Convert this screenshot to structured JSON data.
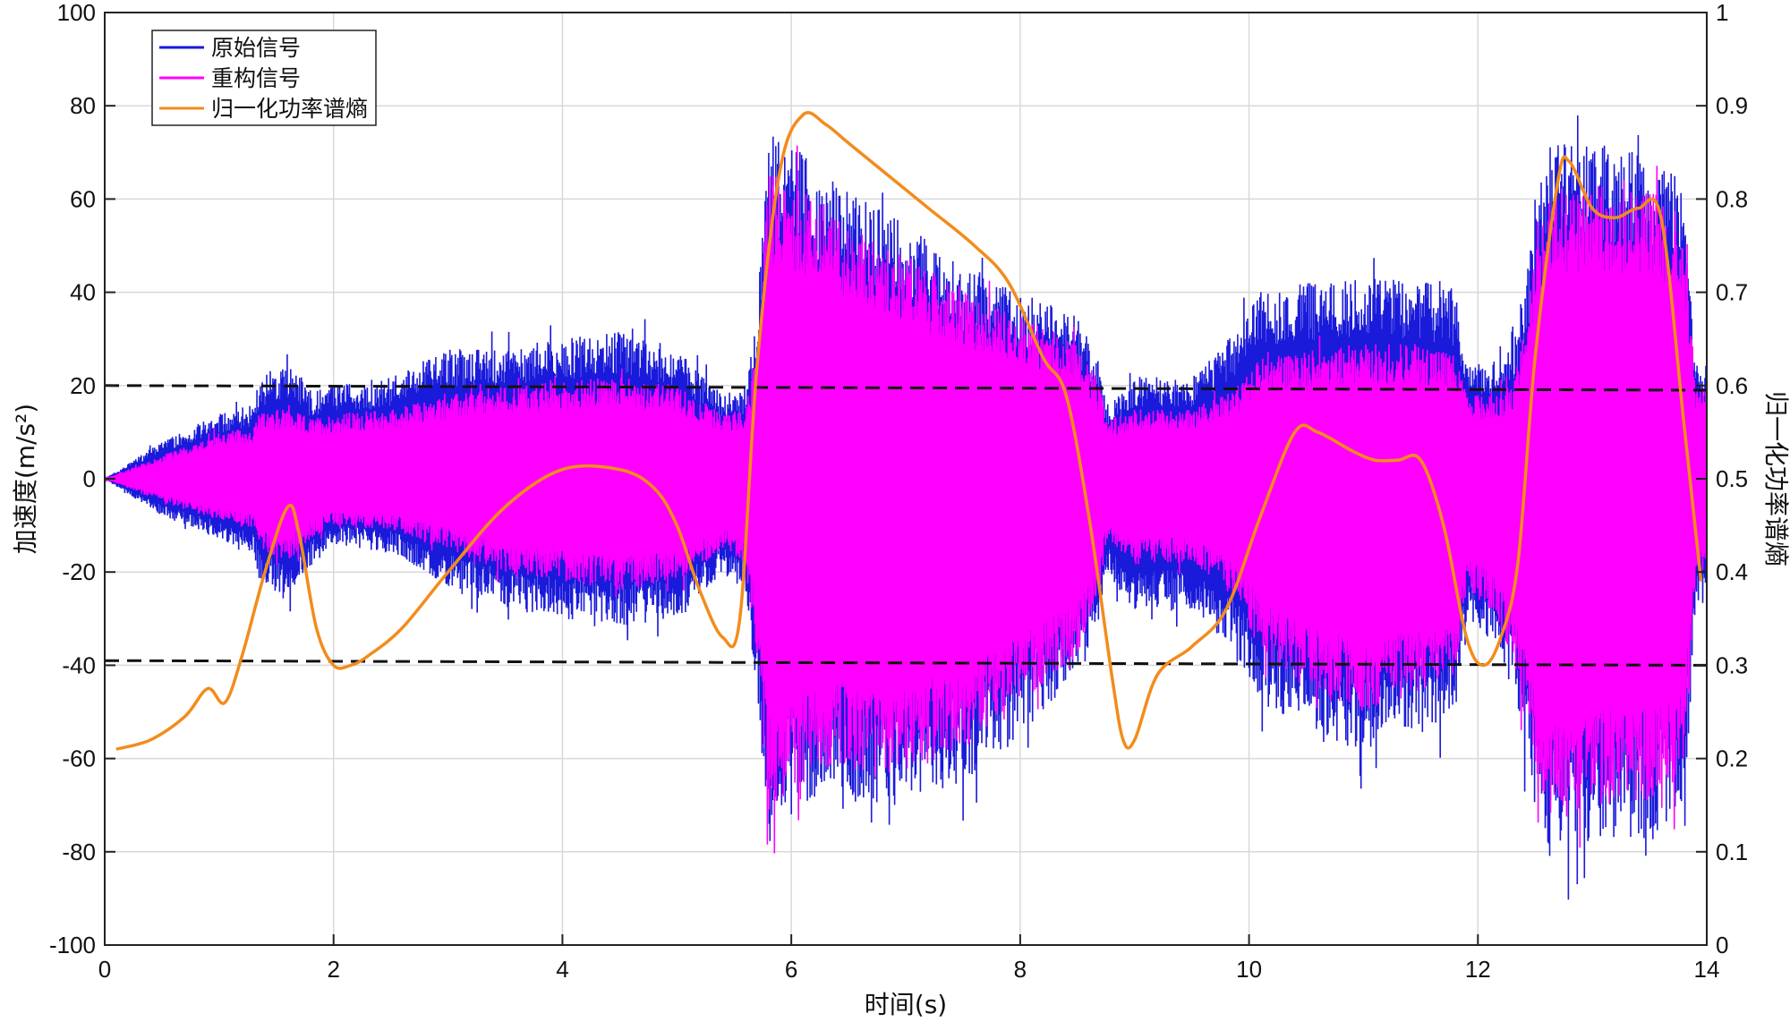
{
  "chart_data": {
    "type": "line",
    "xlabel": "时间(s)",
    "ylabel_left": "加速度(m/s²)",
    "ylabel_right": "归一化功率谱熵",
    "xlim": [
      0,
      14
    ],
    "ylim_left": [
      -100,
      100
    ],
    "ylim_right": [
      0,
      1
    ],
    "xticks": [
      "0",
      "2",
      "4",
      "6",
      "8",
      "10",
      "12",
      "14"
    ],
    "yticks_left": [
      "100",
      "80",
      "60",
      "40",
      "20",
      "0",
      "-20",
      "-40",
      "-60",
      "-80",
      "-100"
    ],
    "yticks_right": [
      "1",
      "0.9",
      "0.8",
      "0.7",
      "0.6",
      "0.5",
      "0.4",
      "0.3",
      "0.2",
      "0.1",
      "0"
    ],
    "grid": true,
    "legend_position": "top-left",
    "legend": [
      {
        "name": "原始信号",
        "color": "#1a1adb"
      },
      {
        "name": "重构信号",
        "color": "#ff00ff"
      },
      {
        "name": "归一化功率谱熵",
        "color": "#f28c1c"
      }
    ],
    "threshold_lines_left_axis": [
      {
        "y_start": 20,
        "y_end": 19
      },
      {
        "y_start": -39,
        "y_end": -40
      }
    ],
    "series": [
      {
        "name": "原始信号",
        "axis": "left",
        "envelope_x": [
          0,
          0.5,
          1.0,
          1.3,
          1.35,
          1.6,
          1.8,
          2.0,
          2.5,
          3.0,
          3.5,
          4.0,
          4.5,
          5.0,
          5.4,
          5.6,
          5.7,
          5.8,
          6.0,
          6.3,
          6.6,
          7.0,
          7.5,
          8.0,
          8.5,
          8.7,
          8.75,
          9.0,
          9.5,
          9.9,
          10.1,
          10.5,
          11.0,
          11.5,
          11.8,
          11.9,
          12.1,
          12.3,
          12.5,
          12.6,
          13.0,
          13.5,
          13.8,
          13.9,
          14.0
        ],
        "envelope_upper": [
          0,
          8,
          14,
          16,
          22,
          25,
          19,
          20,
          22,
          28,
          28,
          30,
          32,
          28,
          18,
          20,
          35,
          75,
          72,
          65,
          60,
          55,
          45,
          40,
          35,
          25,
          15,
          22,
          22,
          32,
          40,
          42,
          43,
          43,
          40,
          25,
          25,
          28,
          55,
          72,
          72,
          72,
          65,
          25,
          25
        ],
        "envelope_lower": [
          0,
          -8,
          -13,
          -16,
          -22,
          -27,
          -19,
          -14,
          -16,
          -23,
          -28,
          -30,
          -32,
          -30,
          -20,
          -25,
          -45,
          -80,
          -72,
          -68,
          -70,
          -70,
          -65,
          -55,
          -42,
          -30,
          -20,
          -28,
          -28,
          -38,
          -48,
          -55,
          -60,
          -55,
          -50,
          -30,
          -35,
          -45,
          -70,
          -82,
          -78,
          -78,
          -72,
          -30,
          -25
        ]
      },
      {
        "name": "重构信号",
        "axis": "left",
        "envelope_x": [
          0,
          0.5,
          1.0,
          1.3,
          1.35,
          1.6,
          1.8,
          2.0,
          2.5,
          3.0,
          3.5,
          4.0,
          4.5,
          5.0,
          5.4,
          5.6,
          5.7,
          5.8,
          6.0,
          6.3,
          6.6,
          7.0,
          7.5,
          8.0,
          8.5,
          8.7,
          8.75,
          9.0,
          9.5,
          9.9,
          10.1,
          10.5,
          11.0,
          11.5,
          11.8,
          11.9,
          12.1,
          12.3,
          12.5,
          12.6,
          13.0,
          13.5,
          13.8,
          13.9,
          14.0
        ],
        "envelope_upper": [
          0,
          5,
          10,
          11,
          14,
          15,
          13,
          14,
          15,
          18,
          20,
          21,
          22,
          20,
          14,
          15,
          28,
          66,
          64,
          58,
          53,
          48,
          40,
          35,
          30,
          20,
          12,
          15,
          15,
          20,
          26,
          28,
          29,
          29,
          27,
          18,
          18,
          20,
          48,
          63,
          63,
          63,
          56,
          20,
          20
        ],
        "envelope_lower": [
          0,
          -5,
          -9,
          -11,
          -15,
          -18,
          -13,
          -10,
          -11,
          -15,
          -20,
          -22,
          -24,
          -22,
          -15,
          -18,
          -38,
          -72,
          -66,
          -62,
          -63,
          -63,
          -58,
          -48,
          -38,
          -24,
          -14,
          -18,
          -18,
          -26,
          -38,
          -45,
          -50,
          -46,
          -42,
          -24,
          -28,
          -38,
          -63,
          -74,
          -70,
          -70,
          -65,
          -24,
          -20
        ]
      },
      {
        "name": "归一化功率谱熵",
        "axis": "right",
        "x": [
          0.1,
          0.4,
          0.7,
          0.9,
          1.05,
          1.2,
          1.4,
          1.6,
          1.7,
          1.85,
          2.0,
          2.15,
          2.3,
          2.6,
          3.0,
          3.5,
          4.0,
          4.5,
          4.8,
          5.0,
          5.2,
          5.4,
          5.55,
          5.7,
          5.9,
          6.1,
          6.3,
          6.5,
          6.8,
          7.2,
          7.6,
          7.9,
          8.2,
          8.4,
          8.6,
          8.8,
          8.9,
          9.0,
          9.2,
          9.5,
          9.8,
          10.1,
          10.4,
          10.6,
          10.9,
          11.1,
          11.3,
          11.5,
          11.7,
          11.9,
          12.05,
          12.2,
          12.35,
          12.5,
          12.7,
          12.8,
          13.0,
          13.2,
          13.4,
          13.6,
          13.8,
          13.95
        ],
        "y": [
          0.21,
          0.22,
          0.245,
          0.275,
          0.26,
          0.31,
          0.4,
          0.47,
          0.44,
          0.34,
          0.3,
          0.3,
          0.31,
          0.34,
          0.4,
          0.47,
          0.51,
          0.51,
          0.49,
          0.45,
          0.38,
          0.33,
          0.35,
          0.62,
          0.83,
          0.89,
          0.88,
          0.86,
          0.83,
          0.79,
          0.75,
          0.71,
          0.63,
          0.59,
          0.46,
          0.29,
          0.22,
          0.22,
          0.29,
          0.32,
          0.36,
          0.46,
          0.55,
          0.55,
          0.53,
          0.52,
          0.52,
          0.52,
          0.45,
          0.33,
          0.3,
          0.33,
          0.41,
          0.63,
          0.82,
          0.84,
          0.79,
          0.78,
          0.79,
          0.78,
          0.56,
          0.39
        ]
      }
    ]
  }
}
